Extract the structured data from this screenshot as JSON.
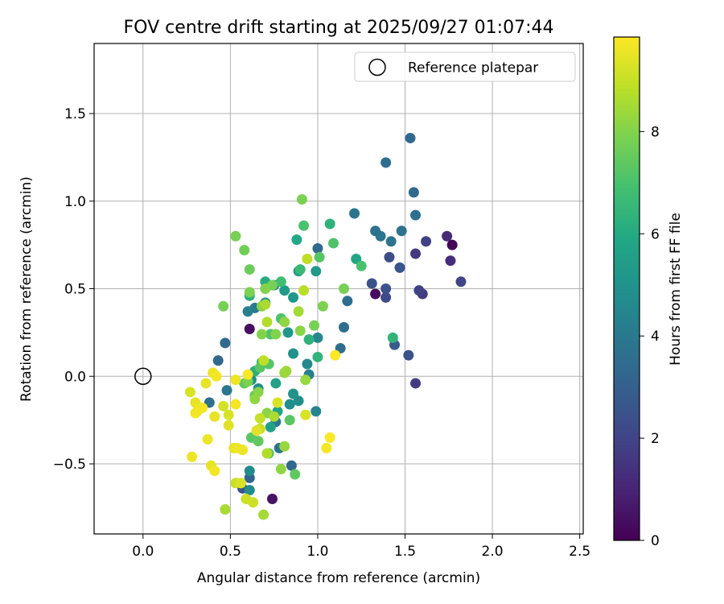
{
  "chart_data": {
    "type": "scatter",
    "title": "FOV centre drift starting at 2025/09/27 01:07:44",
    "xlabel": "Angular distance from reference (arcmin)",
    "ylabel": "Rotation from reference (arcmin)",
    "xlim": [
      -0.28,
      2.52
    ],
    "ylim": [
      -0.9,
      1.9
    ],
    "xticks": [
      0.0,
      0.5,
      1.0,
      1.5,
      2.0,
      2.5
    ],
    "xtick_labels": [
      "0.0",
      "0.5",
      "1.0",
      "1.5",
      "2.0",
      "2.5"
    ],
    "yticks": [
      -0.5,
      0.0,
      0.5,
      1.0,
      1.5
    ],
    "ytick_labels": [
      "−0.5",
      "0.0",
      "0.5",
      "1.0",
      "1.5"
    ],
    "grid": true,
    "legend": {
      "placement": "top-right",
      "entries": [
        "Reference platepar"
      ]
    },
    "reference_point": {
      "x": 0.0,
      "y": 0.0,
      "label": "Reference platepar"
    },
    "colorbar": {
      "label": "Hours from first FF file",
      "range": [
        0,
        9.85
      ],
      "ticks": [
        0,
        2,
        4,
        6,
        8
      ],
      "tick_labels": [
        "0",
        "2",
        "4",
        "6",
        "8"
      ],
      "colormap": "viridis"
    },
    "points": [
      {
        "x": 1.77,
        "y": 0.75,
        "c": 0.1
      },
      {
        "x": 1.33,
        "y": 0.47,
        "c": 0.3
      },
      {
        "x": 0.61,
        "y": 0.27,
        "c": 0.4
      },
      {
        "x": 0.74,
        "y": -0.7,
        "c": 0.5
      },
      {
        "x": 1.76,
        "y": 0.66,
        "c": 1.3
      },
      {
        "x": 1.74,
        "y": 0.8,
        "c": 1.2
      },
      {
        "x": 1.56,
        "y": -0.04,
        "c": 1.7
      },
      {
        "x": 1.6,
        "y": 0.47,
        "c": 1.7
      },
      {
        "x": 1.58,
        "y": 0.49,
        "c": 1.9
      },
      {
        "x": 1.82,
        "y": 0.54,
        "c": 2.0
      },
      {
        "x": 1.62,
        "y": 0.77,
        "c": 1.9
      },
      {
        "x": 1.56,
        "y": 0.7,
        "c": 1.6
      },
      {
        "x": 1.41,
        "y": 0.68,
        "c": 2.3
      },
      {
        "x": 1.39,
        "y": 0.45,
        "c": 2.2
      },
      {
        "x": 1.39,
        "y": 0.5,
        "c": 2.4
      },
      {
        "x": 1.31,
        "y": 0.53,
        "c": 2.5
      },
      {
        "x": 1.47,
        "y": 0.62,
        "c": 2.6
      },
      {
        "x": 1.44,
        "y": 0.18,
        "c": 2.8
      },
      {
        "x": 1.52,
        "y": 0.12,
        "c": 2.5
      },
      {
        "x": 1.53,
        "y": 1.36,
        "c": 3.3
      },
      {
        "x": 1.55,
        "y": 1.05,
        "c": 3.4
      },
      {
        "x": 1.39,
        "y": 1.22,
        "c": 3.5
      },
      {
        "x": 1.56,
        "y": 0.92,
        "c": 3.6
      },
      {
        "x": 1.48,
        "y": 0.83,
        "c": 3.7
      },
      {
        "x": 1.42,
        "y": 0.77,
        "c": 3.8
      },
      {
        "x": 1.36,
        "y": 0.8,
        "c": 3.9
      },
      {
        "x": 1.33,
        "y": 0.83,
        "c": 3.7
      },
      {
        "x": 1.21,
        "y": 0.93,
        "c": 3.8
      },
      {
        "x": 1.0,
        "y": 0.73,
        "c": 3.4
      },
      {
        "x": 1.17,
        "y": 0.43,
        "c": 3.6
      },
      {
        "x": 1.15,
        "y": 0.28,
        "c": 3.5
      },
      {
        "x": 1.13,
        "y": 0.16,
        "c": 3.5
      },
      {
        "x": 0.47,
        "y": 0.19,
        "c": 3.4
      },
      {
        "x": 0.43,
        "y": 0.09,
        "c": 3.3
      },
      {
        "x": 0.38,
        "y": -0.15,
        "c": 3.6
      },
      {
        "x": 0.48,
        "y": -0.08,
        "c": 3.9
      },
      {
        "x": 0.57,
        "y": -0.64,
        "c": 2.5
      },
      {
        "x": 0.61,
        "y": -0.58,
        "c": 3.1
      },
      {
        "x": 0.85,
        "y": -0.51,
        "c": 3.3
      },
      {
        "x": 0.78,
        "y": -0.41,
        "c": 3.8
      },
      {
        "x": 0.76,
        "y": -0.26,
        "c": 3.9
      },
      {
        "x": 0.64,
        "y": 0.39,
        "c": 4.0
      },
      {
        "x": 0.6,
        "y": 0.37,
        "c": 4.2
      },
      {
        "x": 0.75,
        "y": 0.52,
        "c": 4.1
      },
      {
        "x": 0.95,
        "y": 0.01,
        "c": 4.2
      },
      {
        "x": 0.99,
        "y": -0.2,
        "c": 4.4
      },
      {
        "x": 1.0,
        "y": 0.22,
        "c": 4.5
      },
      {
        "x": 0.94,
        "y": 0.07,
        "c": 4.6
      },
      {
        "x": 0.61,
        "y": -0.54,
        "c": 4.7
      },
      {
        "x": 0.61,
        "y": -0.65,
        "c": 4.7
      },
      {
        "x": 0.84,
        "y": -0.16,
        "c": 4.8
      },
      {
        "x": 0.89,
        "y": -0.14,
        "c": 4.8
      },
      {
        "x": 0.66,
        "y": -0.07,
        "c": 4.8
      },
      {
        "x": 0.62,
        "y": -0.02,
        "c": 4.9
      },
      {
        "x": 0.86,
        "y": -0.1,
        "c": 5.0
      },
      {
        "x": 0.86,
        "y": 0.13,
        "c": 5.0
      },
      {
        "x": 0.7,
        "y": 0.42,
        "c": 5.0
      },
      {
        "x": 0.83,
        "y": 0.25,
        "c": 5.2
      },
      {
        "x": 0.86,
        "y": 0.45,
        "c": 5.2
      },
      {
        "x": 0.81,
        "y": 0.49,
        "c": 5.3
      },
      {
        "x": 0.89,
        "y": 0.6,
        "c": 5.5
      },
      {
        "x": 0.99,
        "y": 0.6,
        "c": 5.3
      },
      {
        "x": 0.76,
        "y": -0.04,
        "c": 5.6
      },
      {
        "x": 0.73,
        "y": -0.29,
        "c": 5.6
      },
      {
        "x": 0.77,
        "y": -0.2,
        "c": 5.8
      },
      {
        "x": 0.88,
        "y": 0.78,
        "c": 5.9
      },
      {
        "x": 1.22,
        "y": 0.67,
        "c": 5.8
      },
      {
        "x": 1.43,
        "y": 0.22,
        "c": 6.4
      },
      {
        "x": 1.07,
        "y": 0.87,
        "c": 6.3
      },
      {
        "x": 0.61,
        "y": 0.46,
        "c": 6.2
      },
      {
        "x": 0.64,
        "y": 0.03,
        "c": 6.2
      },
      {
        "x": 0.68,
        "y": 0.08,
        "c": 6.2
      },
      {
        "x": 0.7,
        "y": 0.54,
        "c": 6.1
      },
      {
        "x": 0.9,
        "y": 0.61,
        "c": 6.6
      },
      {
        "x": 1.0,
        "y": 0.11,
        "c": 6.4
      },
      {
        "x": 0.95,
        "y": 0.21,
        "c": 6.3
      },
      {
        "x": 0.79,
        "y": 0.54,
        "c": 6.8
      },
      {
        "x": 0.92,
        "y": 0.86,
        "c": 7.0
      },
      {
        "x": 1.09,
        "y": 0.76,
        "c": 7.1
      },
      {
        "x": 1.25,
        "y": 0.63,
        "c": 7.0
      },
      {
        "x": 1.01,
        "y": 0.68,
        "c": 7.2
      },
      {
        "x": 0.79,
        "y": 0.33,
        "c": 7.1
      },
      {
        "x": 0.73,
        "y": 0.24,
        "c": 7.1
      },
      {
        "x": 0.67,
        "y": 0.05,
        "c": 7.3
      },
      {
        "x": 0.58,
        "y": -0.04,
        "c": 7.4
      },
      {
        "x": 0.62,
        "y": -0.35,
        "c": 7.3
      },
      {
        "x": 0.66,
        "y": -0.37,
        "c": 7.4
      },
      {
        "x": 0.64,
        "y": -0.11,
        "c": 7.5
      },
      {
        "x": 0.72,
        "y": 0.07,
        "c": 7.2
      },
      {
        "x": 0.72,
        "y": -0.44,
        "c": 7.1
      },
      {
        "x": 0.84,
        "y": -0.25,
        "c": 7.3
      },
      {
        "x": 0.87,
        "y": -0.56,
        "c": 7.4
      },
      {
        "x": 0.61,
        "y": 0.61,
        "c": 7.6
      },
      {
        "x": 0.58,
        "y": 0.72,
        "c": 7.7
      },
      {
        "x": 0.53,
        "y": 0.8,
        "c": 7.8
      },
      {
        "x": 0.91,
        "y": 1.01,
        "c": 7.9
      },
      {
        "x": 1.15,
        "y": 0.5,
        "c": 7.8
      },
      {
        "x": 1.03,
        "y": 0.4,
        "c": 7.9
      },
      {
        "x": 0.61,
        "y": 0.48,
        "c": 7.9
      },
      {
        "x": 0.46,
        "y": 0.4,
        "c": 7.8
      },
      {
        "x": 0.74,
        "y": 0.52,
        "c": 7.8
      },
      {
        "x": 0.7,
        "y": 0.5,
        "c": 8.0
      },
      {
        "x": 0.98,
        "y": 0.29,
        "c": 7.8
      },
      {
        "x": 0.68,
        "y": 0.24,
        "c": 8.0
      },
      {
        "x": 0.68,
        "y": 0.4,
        "c": 8.1
      },
      {
        "x": 0.81,
        "y": 0.31,
        "c": 8.2
      },
      {
        "x": 0.9,
        "y": 0.26,
        "c": 8.1
      },
      {
        "x": 0.76,
        "y": 0.24,
        "c": 8.0
      },
      {
        "x": 0.66,
        "y": -0.09,
        "c": 8.1
      },
      {
        "x": 0.64,
        "y": -0.13,
        "c": 8.2
      },
      {
        "x": 0.6,
        "y": -0.03,
        "c": 7.9
      },
      {
        "x": 0.81,
        "y": 0.02,
        "c": 8.3
      },
      {
        "x": 0.82,
        "y": 0.03,
        "c": 8.4
      },
      {
        "x": 0.93,
        "y": -0.02,
        "c": 8.3
      },
      {
        "x": 0.79,
        "y": -0.53,
        "c": 8.2
      },
      {
        "x": 0.81,
        "y": -0.4,
        "c": 8.3
      },
      {
        "x": 0.71,
        "y": -0.21,
        "c": 8.1
      },
      {
        "x": 0.75,
        "y": -0.23,
        "c": 8.6
      },
      {
        "x": 0.71,
        "y": -0.44,
        "c": 8.7
      },
      {
        "x": 0.69,
        "y": -0.79,
        "c": 8.5
      },
      {
        "x": 0.47,
        "y": -0.76,
        "c": 8.6
      },
      {
        "x": 0.71,
        "y": 0.31,
        "c": 8.7
      },
      {
        "x": 0.7,
        "y": 0.41,
        "c": 8.6
      },
      {
        "x": 0.89,
        "y": 0.37,
        "c": 8.5
      },
      {
        "x": 0.94,
        "y": 0.67,
        "c": 8.9
      },
      {
        "x": 0.92,
        "y": 0.49,
        "c": 8.8
      },
      {
        "x": 0.69,
        "y": 0.09,
        "c": 8.9
      },
      {
        "x": 0.67,
        "y": -0.3,
        "c": 9.0
      },
      {
        "x": 0.53,
        "y": -0.61,
        "c": 9.0
      },
      {
        "x": 0.59,
        "y": -0.7,
        "c": 9.1
      },
      {
        "x": 0.63,
        "y": -0.72,
        "c": 9.1
      },
      {
        "x": 0.67,
        "y": -0.24,
        "c": 9.0
      },
      {
        "x": 0.93,
        "y": -0.22,
        "c": 9.3
      },
      {
        "x": 0.77,
        "y": -0.15,
        "c": 9.3
      },
      {
        "x": 0.65,
        "y": -0.31,
        "c": 9.4
      },
      {
        "x": 0.56,
        "y": -0.61,
        "c": 9.3
      },
      {
        "x": 0.52,
        "y": -0.41,
        "c": 9.5
      },
      {
        "x": 0.54,
        "y": -0.41,
        "c": 9.6
      },
      {
        "x": 0.57,
        "y": -0.42,
        "c": 9.6
      },
      {
        "x": 0.46,
        "y": -0.17,
        "c": 9.2
      },
      {
        "x": 0.49,
        "y": -0.22,
        "c": 9.3
      },
      {
        "x": 0.53,
        "y": -0.02,
        "c": 9.6
      },
      {
        "x": 0.53,
        "y": -0.16,
        "c": 9.7
      },
      {
        "x": 0.49,
        "y": -0.28,
        "c": 9.4
      },
      {
        "x": 0.4,
        "y": 0.02,
        "c": 9.6
      },
      {
        "x": 0.42,
        "y": 0.0,
        "c": 9.7
      },
      {
        "x": 0.36,
        "y": -0.04,
        "c": 9.5
      },
      {
        "x": 0.27,
        "y": -0.09,
        "c": 9.3
      },
      {
        "x": 0.3,
        "y": -0.15,
        "c": 9.5
      },
      {
        "x": 0.31,
        "y": -0.2,
        "c": 9.6
      },
      {
        "x": 0.34,
        "y": -0.18,
        "c": 9.7
      },
      {
        "x": 0.3,
        "y": -0.21,
        "c": 9.7
      },
      {
        "x": 0.41,
        "y": -0.23,
        "c": 9.5
      },
      {
        "x": 0.37,
        "y": -0.36,
        "c": 9.6
      },
      {
        "x": 0.28,
        "y": -0.46,
        "c": 9.6
      },
      {
        "x": 0.39,
        "y": -0.51,
        "c": 9.5
      },
      {
        "x": 0.41,
        "y": -0.54,
        "c": 9.7
      },
      {
        "x": 0.6,
        "y": 0.01,
        "c": 9.8
      },
      {
        "x": 1.05,
        "y": -0.41,
        "c": 9.7
      },
      {
        "x": 1.07,
        "y": -0.35,
        "c": 9.8
      },
      {
        "x": 1.1,
        "y": 0.12,
        "c": 9.8
      }
    ]
  }
}
